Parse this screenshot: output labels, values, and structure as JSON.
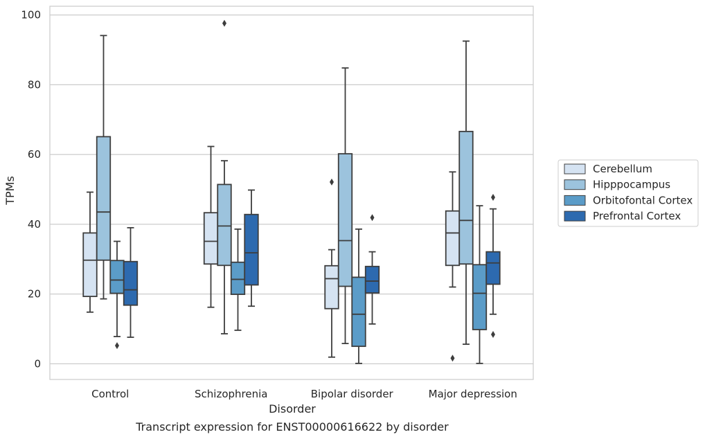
{
  "chart_data": {
    "type": "box",
    "xlabel": "Disorder",
    "ylabel": "TPMs",
    "caption": "Transcript expression for ENST00000616622 by disorder",
    "ylim": [
      -4.5,
      102.5
    ],
    "yticks": [
      0,
      20,
      40,
      60,
      80,
      100
    ],
    "grid": true,
    "legend_position": "right",
    "categories": [
      "Control",
      "Schizophrenia",
      "Bipolar disorder",
      "Major depression"
    ],
    "series": [
      {
        "name": "Cerebellum",
        "color": "#d5e3f2",
        "boxes": [
          {
            "whislo": 14.8,
            "q1": 19.3,
            "med": 29.7,
            "q3": 37.5,
            "whishi": 49.2,
            "fliers": []
          },
          {
            "whislo": 16.2,
            "q1": 28.6,
            "med": 35.1,
            "q3": 43.3,
            "whishi": 62.3,
            "fliers": []
          },
          {
            "whislo": 1.9,
            "q1": 15.8,
            "med": 24.4,
            "q3": 28.1,
            "whishi": 32.7,
            "fliers": [
              52.1
            ]
          },
          {
            "whislo": 22.0,
            "q1": 28.2,
            "med": 37.5,
            "q3": 43.8,
            "whishi": 55.0,
            "fliers": [
              1.6
            ]
          }
        ]
      },
      {
        "name": "Hipppocampus",
        "color": "#9cc3dd",
        "boxes": [
          {
            "whislo": 18.6,
            "q1": 29.7,
            "med": 43.5,
            "q3": 65.1,
            "whishi": 94.1,
            "fliers": []
          },
          {
            "whislo": 8.6,
            "q1": 28.2,
            "med": 39.5,
            "q3": 51.4,
            "whishi": 58.2,
            "fliers": [
              97.6
            ]
          },
          {
            "whislo": 5.8,
            "q1": 22.2,
            "med": 35.3,
            "q3": 60.2,
            "whishi": 84.8,
            "fliers": []
          },
          {
            "whislo": 5.6,
            "q1": 28.6,
            "med": 41.1,
            "q3": 66.6,
            "whishi": 92.5,
            "fliers": []
          }
        ]
      },
      {
        "name": "Orbitofontal Cortex",
        "color": "#5b9cc8",
        "boxes": [
          {
            "whislo": 7.8,
            "q1": 20.2,
            "med": 24.0,
            "q3": 29.6,
            "whishi": 35.1,
            "fliers": [
              5.2
            ]
          },
          {
            "whislo": 9.6,
            "q1": 19.9,
            "med": 24.2,
            "q3": 29.1,
            "whishi": 38.6,
            "fliers": []
          },
          {
            "whislo": 0.1,
            "q1": 5.0,
            "med": 14.2,
            "q3": 24.8,
            "whishi": 38.6,
            "fliers": []
          },
          {
            "whislo": 0.1,
            "q1": 9.8,
            "med": 20.2,
            "q3": 28.4,
            "whishi": 45.3,
            "fliers": []
          }
        ]
      },
      {
        "name": "Prefrontal Cortex",
        "color": "#2d6aaf",
        "boxes": [
          {
            "whislo": 7.6,
            "q1": 16.8,
            "med": 21.2,
            "q3": 29.3,
            "whishi": 39.0,
            "fliers": []
          },
          {
            "whislo": 16.5,
            "q1": 22.6,
            "med": 31.8,
            "q3": 42.8,
            "whishi": 49.8,
            "fliers": []
          },
          {
            "whislo": 11.4,
            "q1": 20.3,
            "med": 23.7,
            "q3": 27.9,
            "whishi": 32.1,
            "fliers": [
              41.9
            ]
          },
          {
            "whislo": 14.2,
            "q1": 22.8,
            "med": 28.9,
            "q3": 32.1,
            "whishi": 44.4,
            "fliers": [
              8.4,
              47.7
            ]
          }
        ]
      }
    ]
  }
}
